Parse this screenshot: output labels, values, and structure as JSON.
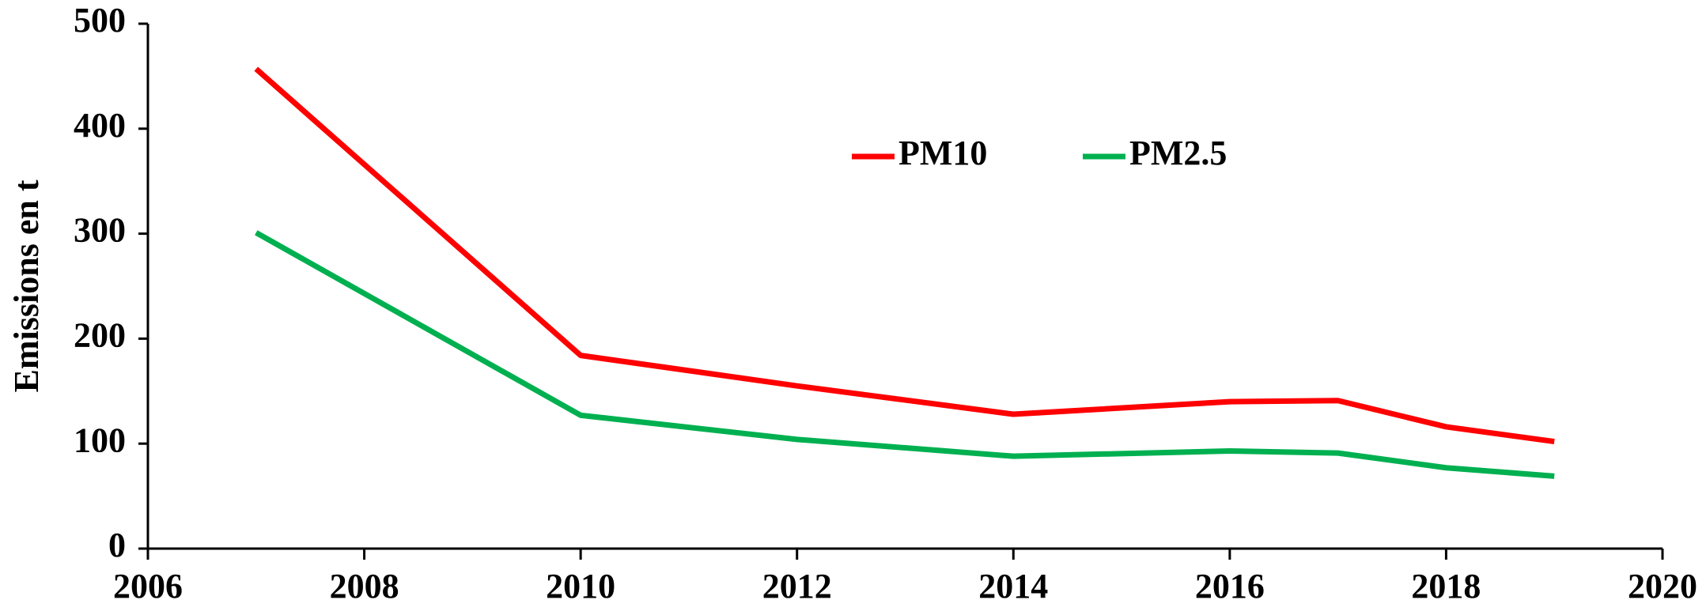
{
  "chart_data": {
    "type": "line",
    "y_label": "Emissions en t",
    "x": [
      2007,
      2010,
      2012,
      2014,
      2016,
      2017,
      2018,
      2019
    ],
    "series": [
      {
        "name": "PM10",
        "color": "#ff0000",
        "values": [
          457,
          184,
          155,
          128,
          140,
          141,
          116,
          102
        ]
      },
      {
        "name": "PM2.5",
        "color": "#00b050",
        "values": [
          301,
          127,
          104,
          88,
          93,
          91,
          77,
          69
        ]
      }
    ],
    "xlim": [
      2006,
      2020
    ],
    "xticks": [
      2006,
      2008,
      2010,
      2012,
      2014,
      2016,
      2018,
      2020
    ],
    "ylim": [
      0,
      500
    ],
    "yticks": [
      0,
      100,
      200,
      300,
      400,
      500
    ],
    "grid": false,
    "legend": "top"
  }
}
